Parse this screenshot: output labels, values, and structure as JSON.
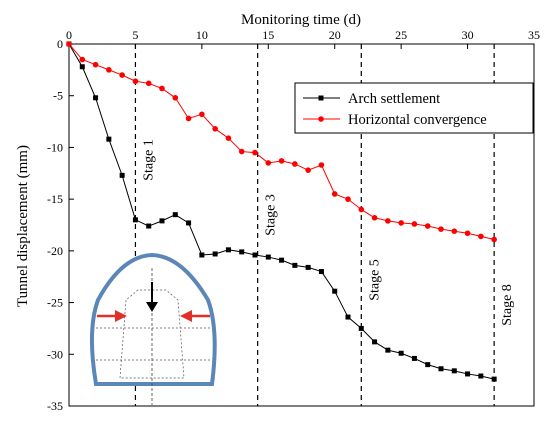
{
  "chart_data": {
    "type": "line",
    "title": "",
    "xlabel": "Monitoring time (d)",
    "ylabel": "Tunnel displacement (mm)",
    "xlim": [
      0,
      35
    ],
    "ylim": [
      -35,
      0
    ],
    "x_ticks": [
      0,
      5,
      10,
      15,
      20,
      25,
      30,
      35
    ],
    "y_ticks": [
      0,
      -5,
      -10,
      -15,
      -20,
      -25,
      -30,
      -35
    ],
    "x_axis_position": "top",
    "grid": false,
    "legend_position": "top-right",
    "series": [
      {
        "name": "Arch settlement",
        "color": "#000000",
        "marker": "square",
        "points": [
          [
            0,
            0
          ],
          [
            1,
            -2.2
          ],
          [
            2,
            -5.2
          ],
          [
            3,
            -9.2
          ],
          [
            4,
            -12.7
          ],
          [
            5,
            -17
          ],
          [
            6,
            -17.6
          ],
          [
            7,
            -17.1
          ],
          [
            8,
            -16.5
          ],
          [
            9,
            -17.3
          ],
          [
            10,
            -20.4
          ],
          [
            11,
            -20.3
          ],
          [
            12,
            -19.9
          ],
          [
            13,
            -20.1
          ],
          [
            14,
            -20.4
          ],
          [
            15,
            -20.6
          ],
          [
            16,
            -20.9
          ],
          [
            17,
            -21.4
          ],
          [
            18,
            -21.6
          ],
          [
            19,
            -22.0
          ],
          [
            20,
            -23.9
          ],
          [
            21,
            -26.4
          ],
          [
            22,
            -27.5
          ],
          [
            23,
            -28.8
          ],
          [
            24,
            -29.6
          ],
          [
            25,
            -29.9
          ],
          [
            26,
            -30.4
          ],
          [
            27,
            -31
          ],
          [
            28,
            -31.4
          ],
          [
            29,
            -31.6
          ],
          [
            30,
            -31.9
          ],
          [
            31,
            -32.1
          ],
          [
            32,
            -32.4
          ]
        ]
      },
      {
        "name": "Horizontal convergence",
        "color": "#ff0000",
        "marker": "circle",
        "points": [
          [
            0,
            0
          ],
          [
            1,
            -1.5
          ],
          [
            2,
            -2
          ],
          [
            3,
            -2.5
          ],
          [
            4,
            -3
          ],
          [
            5,
            -3.6
          ],
          [
            6,
            -3.8
          ],
          [
            7,
            -4.3
          ],
          [
            8,
            -5.2
          ],
          [
            9,
            -7.2
          ],
          [
            10,
            -6.8
          ],
          [
            11,
            -8.2
          ],
          [
            12,
            -9.1
          ],
          [
            13,
            -10.4
          ],
          [
            14,
            -10.5
          ],
          [
            15,
            -11.5
          ],
          [
            16,
            -11.3
          ],
          [
            17,
            -11.6
          ],
          [
            18,
            -12.2
          ],
          [
            19,
            -11.7
          ],
          [
            20,
            -14.5
          ],
          [
            21,
            -15
          ],
          [
            22,
            -16
          ],
          [
            23,
            -16.8
          ],
          [
            24,
            -17.1
          ],
          [
            25,
            -17.3
          ],
          [
            26,
            -17.4
          ],
          [
            27,
            -17.6
          ],
          [
            28,
            -17.9
          ],
          [
            29,
            -18.1
          ],
          [
            30,
            -18.3
          ],
          [
            31,
            -18.6
          ],
          [
            32,
            -18.9
          ]
        ]
      }
    ],
    "stages": [
      {
        "label": "Stage 1",
        "x": 5
      },
      {
        "label": "Stage 3",
        "x": 14.2
      },
      {
        "label": "Stage 5",
        "x": 22
      },
      {
        "label": "Stage 8",
        "x": 32
      }
    ],
    "inset": {
      "description_icon": "tunnel-cross-section-icon",
      "outline_color": "#5b86b8",
      "arrow_color": "#e0302a"
    }
  }
}
